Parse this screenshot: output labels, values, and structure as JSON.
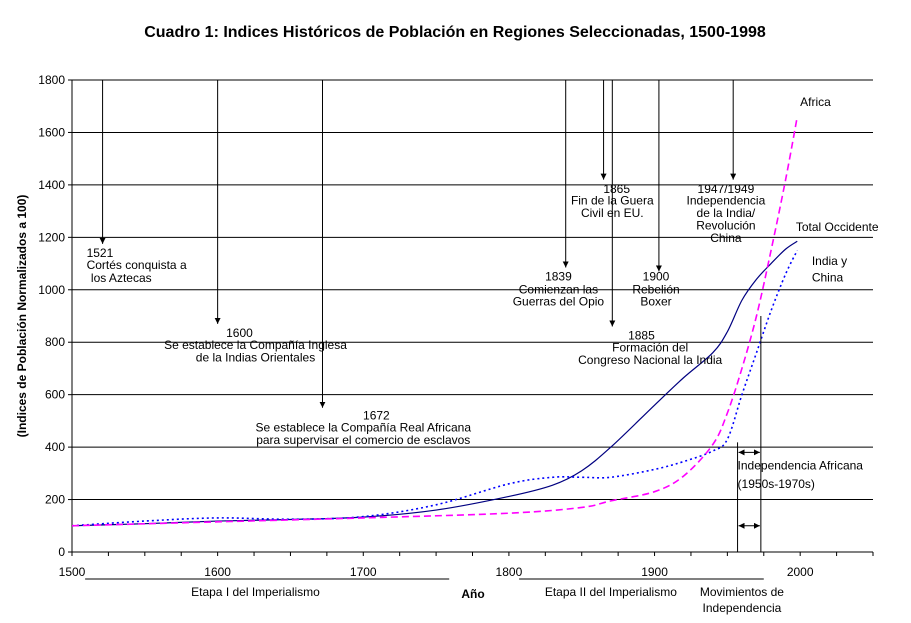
{
  "chart_data": {
    "type": "line",
    "title": "Cuadro 1: Indices Históricos de Población en Regiones Seleccionadas, 1500-1998",
    "xlabel": "Año",
    "ylabel": "(Indices de Población Normalizados a 100)",
    "xlim": [
      1500,
      2050
    ],
    "ylim": [
      0,
      1800
    ],
    "x_ticks": [
      1500,
      1600,
      1700,
      1800,
      1900,
      2000
    ],
    "y_ticks": [
      0,
      200,
      400,
      600,
      800,
      1000,
      1200,
      1400,
      1600,
      1800
    ],
    "grid": "horizontal",
    "series": [
      {
        "name": "Total Occidente",
        "style": "solid",
        "color": "#000080",
        "points": [
          [
            1500,
            100
          ],
          [
            1550,
            108
          ],
          [
            1600,
            118
          ],
          [
            1650,
            124
          ],
          [
            1700,
            133
          ],
          [
            1750,
            160
          ],
          [
            1800,
            212
          ],
          [
            1830,
            255
          ],
          [
            1850,
            310
          ],
          [
            1870,
            400
          ],
          [
            1900,
            560
          ],
          [
            1920,
            665
          ],
          [
            1940,
            760
          ],
          [
            1950,
            840
          ],
          [
            1960,
            960
          ],
          [
            1970,
            1040
          ],
          [
            1980,
            1100
          ],
          [
            1990,
            1155
          ],
          [
            1998,
            1185
          ]
        ]
      },
      {
        "name": "India y China",
        "style": "dotted",
        "color": "#0000FF",
        "points": [
          [
            1500,
            100
          ],
          [
            1550,
            118
          ],
          [
            1600,
            130
          ],
          [
            1650,
            125
          ],
          [
            1700,
            135
          ],
          [
            1750,
            180
          ],
          [
            1800,
            260
          ],
          [
            1830,
            285
          ],
          [
            1850,
            285
          ],
          [
            1870,
            285
          ],
          [
            1900,
            315
          ],
          [
            1920,
            345
          ],
          [
            1940,
            385
          ],
          [
            1950,
            430
          ],
          [
            1960,
            600
          ],
          [
            1970,
            760
          ],
          [
            1980,
            920
          ],
          [
            1990,
            1060
          ],
          [
            1998,
            1150
          ]
        ]
      },
      {
        "name": "Africa",
        "style": "dashed",
        "color": "#FF00FF",
        "points": [
          [
            1500,
            100
          ],
          [
            1600,
            115
          ],
          [
            1700,
            130
          ],
          [
            1800,
            148
          ],
          [
            1850,
            170
          ],
          [
            1870,
            195
          ],
          [
            1900,
            230
          ],
          [
            1920,
            290
          ],
          [
            1940,
            410
          ],
          [
            1950,
            530
          ],
          [
            1960,
            700
          ],
          [
            1970,
            900
          ],
          [
            1980,
            1150
          ],
          [
            1990,
            1420
          ],
          [
            1998,
            1660
          ]
        ]
      }
    ],
    "series_labels": [
      {
        "text": "Africa",
        "at": [
          2000,
          1700
        ]
      },
      {
        "text": "Total Occidente",
        "at": [
          1997,
          1225
        ]
      },
      {
        "text": "India y",
        "at": [
          2008,
          1095
        ]
      },
      {
        "text": "China",
        "at": [
          2008,
          1032
        ]
      }
    ],
    "x_periods": [
      {
        "text": "Etapa I del Imperialismo",
        "line_range": [
          1509,
          1759
        ],
        "label_at": 1626
      },
      {
        "text": "Etapa II del Imperialismo",
        "line_range": [
          1807,
          1961
        ],
        "label_at": 1870
      },
      {
        "text": "Movimientos de",
        "line_range": [
          1905,
          1975
        ],
        "label_at": 1960
      },
      {
        "text": "Independencia",
        "line_range": null,
        "label_at": 1960
      }
    ],
    "events": [
      {
        "year": 1521,
        "top": 1800,
        "tip": 1175,
        "lines": [
          {
            "text": "1521",
            "x": 1510,
            "y": 1125,
            "anchor": "start"
          },
          {
            "text": "Cortés conquista a",
            "x": 1510,
            "y": 1080,
            "anchor": "start"
          },
          {
            "text": "los Aztecas",
            "x": 1513,
            "y": 1030,
            "anchor": "start"
          }
        ]
      },
      {
        "year": 1600,
        "top": 1800,
        "tip": 870,
        "lines": [
          {
            "text": "1600",
            "x": 1615,
            "y": 820,
            "anchor": "middle"
          },
          {
            "text": "Se establece la Compañía Inglesa",
            "x": 1626,
            "y": 775,
            "anchor": "middle"
          },
          {
            "text": "de la Indias Orientales",
            "x": 1626,
            "y": 727,
            "anchor": "middle"
          }
        ]
      },
      {
        "year": 1672,
        "top": 1800,
        "tip": 550,
        "lines": [
          {
            "text": "1672",
            "x": 1709,
            "y": 505,
            "anchor": "middle"
          },
          {
            "text": "Se establece la Compañía Real Africana",
            "x": 1700,
            "y": 460,
            "anchor": "middle"
          },
          {
            "text": "para supervisar el comercio de esclavos",
            "x": 1700,
            "y": 412,
            "anchor": "middle"
          }
        ]
      },
      {
        "year": 1839,
        "top": 1800,
        "tip": 1085,
        "lines": [
          {
            "text": "1839",
            "x": 1834,
            "y": 1035,
            "anchor": "middle"
          },
          {
            "text": "Comienzan las",
            "x": 1834,
            "y": 985,
            "anchor": "middle"
          },
          {
            "text": "Guerras del Opio",
            "x": 1834,
            "y": 940,
            "anchor": "middle"
          }
        ]
      },
      {
        "year": 1865,
        "top": 1800,
        "tip": 1420,
        "lines": [
          {
            "text": "1865",
            "x": 1874,
            "y": 1370,
            "anchor": "middle"
          },
          {
            "text": "Fin de la Guera",
            "x": 1871,
            "y": 1325,
            "anchor": "middle"
          },
          {
            "text": "Civil en EU.",
            "x": 1871,
            "y": 1278,
            "anchor": "middle"
          }
        ]
      },
      {
        "year": 1871,
        "top": 1800,
        "tip": 860,
        "lines": [
          {
            "text": "1885",
            "x": 1891,
            "y": 810,
            "anchor": "middle"
          },
          {
            "text": "Formación del",
            "x": 1897,
            "y": 765,
            "anchor": "middle"
          },
          {
            "text": "Congreso Nacional la India",
            "x": 1897,
            "y": 717,
            "anchor": "middle"
          }
        ]
      },
      {
        "year": 1903,
        "top": 1800,
        "tip": 1070,
        "lines": [
          {
            "text": "1900",
            "x": 1901,
            "y": 1035,
            "anchor": "middle"
          },
          {
            "text": "Rebelión",
            "x": 1901,
            "y": 985,
            "anchor": "middle"
          },
          {
            "text": "Boxer",
            "x": 1901,
            "y": 940,
            "anchor": "middle"
          }
        ]
      },
      {
        "year": 1954,
        "top": 1800,
        "tip": 1420,
        "lines": [
          {
            "text": "1947/1949",
            "x": 1949,
            "y": 1370,
            "anchor": "middle"
          },
          {
            "text": "Independencia",
            "x": 1949,
            "y": 1325,
            "anchor": "middle"
          },
          {
            "text": "de la India/",
            "x": 1949,
            "y": 1278,
            "anchor": "middle"
          },
          {
            "text": "Revolución",
            "x": 1949,
            "y": 1230,
            "anchor": "middle"
          },
          {
            "text": "China",
            "x": 1949,
            "y": 1182,
            "anchor": "middle"
          }
        ]
      }
    ],
    "african_independence": {
      "range": [
        1957,
        1973
      ],
      "bracket_levels": [
        380,
        100
      ],
      "label_lines": [
        {
          "text": "Independencia Africana",
          "x": 1957,
          "y": 315
        },
        {
          "text": "(1950s-1970s)",
          "x": 1957,
          "y": 245
        }
      ]
    }
  }
}
